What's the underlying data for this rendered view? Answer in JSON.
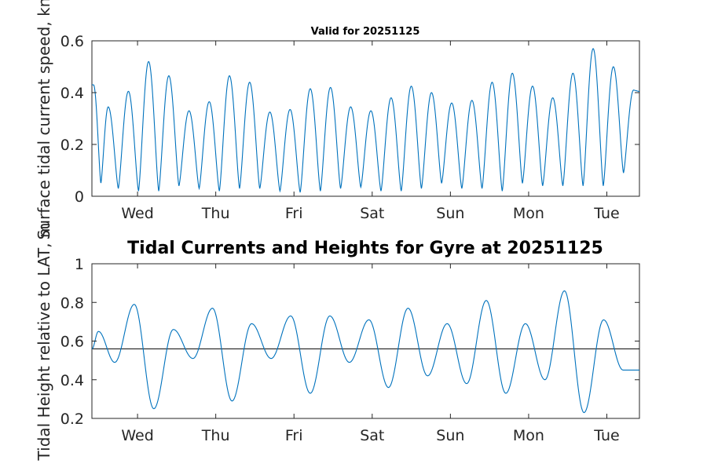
{
  "colors": {
    "series": "#0072bd",
    "reference": "#000000",
    "axes": "#262626"
  },
  "chart_data": [
    {
      "type": "line",
      "title": "Valid for 20251125",
      "ylabel": "Surface tidal current speed, kn",
      "xlabel": "",
      "x_tick_labels": [
        "Wed",
        "Thu",
        "Fri",
        "Sat",
        "Sun",
        "Mon",
        "Tue"
      ],
      "x_ticks_hours": [
        14,
        38,
        62,
        86,
        110,
        134,
        158
      ],
      "xlim_hours": [
        0,
        168
      ],
      "ylim": [
        0,
        0.6
      ],
      "y_ticks": [
        "0",
        "0.2",
        "0.4",
        "0.6"
      ],
      "grid": false,
      "series": [
        {
          "peaks_hours": [
            0.5,
            5,
            11.2,
            17.4,
            23.6,
            29.8,
            36,
            42.2,
            48.4,
            54.6,
            60.8,
            67,
            73.2,
            79.4,
            85.6,
            91.8,
            98,
            104.2,
            110.4,
            116.6,
            122.8,
            129,
            135.2,
            141.4,
            147.6,
            153.8,
            160,
            166.2
          ],
          "peak_speeds": [
            0.43,
            0.345,
            0.405,
            0.52,
            0.465,
            0.33,
            0.365,
            0.465,
            0.44,
            0.325,
            0.335,
            0.415,
            0.42,
            0.345,
            0.33,
            0.38,
            0.425,
            0.4,
            0.36,
            0.37,
            0.44,
            0.475,
            0.425,
            0.38,
            0.475,
            0.57,
            0.5,
            0.41
          ],
          "trough_speeds": [
            0.05,
            0.03,
            0.02,
            0.02,
            0.04,
            0.03,
            0.02,
            0.03,
            0.03,
            0.02,
            0.015,
            0.02,
            0.03,
            0.035,
            0.02,
            0.02,
            0.03,
            0.05,
            0.03,
            0.03,
            0.02,
            0.05,
            0.04,
            0.04,
            0.04,
            0.04,
            0.09
          ]
        }
      ]
    },
    {
      "type": "line",
      "title": "Tidal Currents and Heights for Gyre at 20251125",
      "ylabel": "Tidal Height relative to LAT, m",
      "xlabel": "",
      "x_tick_labels": [
        "Wed",
        "Thu",
        "Fri",
        "Sat",
        "Sun",
        "Mon",
        "Tue"
      ],
      "x_ticks_hours": [
        14,
        38,
        62,
        86,
        110,
        134,
        158
      ],
      "xlim_hours": [
        0,
        168
      ],
      "ylim": [
        0.2,
        1
      ],
      "y_ticks": [
        "0.2",
        "0.4",
        "0.6",
        "0.8",
        "1"
      ],
      "grid": false,
      "reference_line": 0.56,
      "series": [
        {
          "extrema_hours": [
            0,
            2,
            7,
            13,
            19,
            25,
            31,
            37,
            43,
            49,
            55,
            61,
            67,
            73,
            79,
            85,
            91,
            97,
            103,
            109,
            115,
            121,
            127,
            133,
            139,
            145,
            151,
            157,
            163,
            168
          ],
          "heights": [
            0.56,
            0.65,
            0.49,
            0.79,
            0.25,
            0.66,
            0.51,
            0.77,
            0.29,
            0.69,
            0.51,
            0.73,
            0.33,
            0.73,
            0.49,
            0.71,
            0.36,
            0.77,
            0.42,
            0.69,
            0.38,
            0.81,
            0.33,
            0.69,
            0.4,
            0.86,
            0.23,
            0.71,
            0.45,
            0.45
          ]
        }
      ]
    }
  ]
}
